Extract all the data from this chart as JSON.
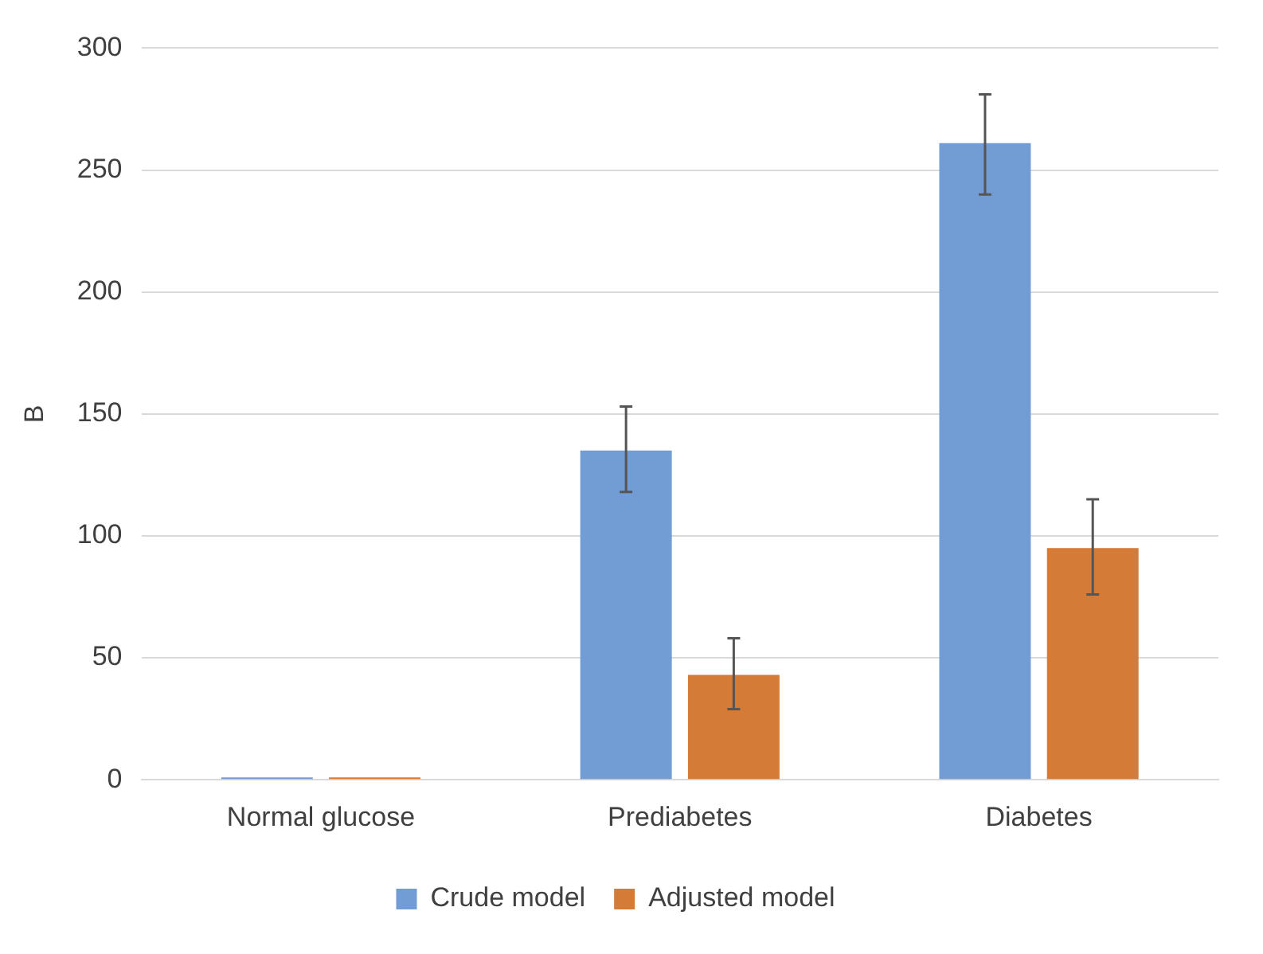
{
  "chart_data": {
    "type": "bar",
    "ylabel": "B",
    "categories": [
      "Normal glucose",
      "Prediabetes",
      "Diabetes"
    ],
    "series": [
      {
        "name": "Crude model",
        "color": "#719cd4",
        "values": [
          1,
          135,
          261
        ],
        "errors": [
          null,
          [
            118,
            153
          ],
          [
            240,
            281
          ]
        ]
      },
      {
        "name": "Adjusted model",
        "color": "#d57b38",
        "values": [
          1,
          43,
          95
        ],
        "errors": [
          null,
          [
            29,
            58
          ],
          [
            76,
            115
          ]
        ]
      }
    ],
    "ylim": [
      0,
      300
    ],
    "yticks": [
      0,
      50,
      100,
      150,
      200,
      250,
      300
    ],
    "grid": "y",
    "legend": "bottom"
  }
}
